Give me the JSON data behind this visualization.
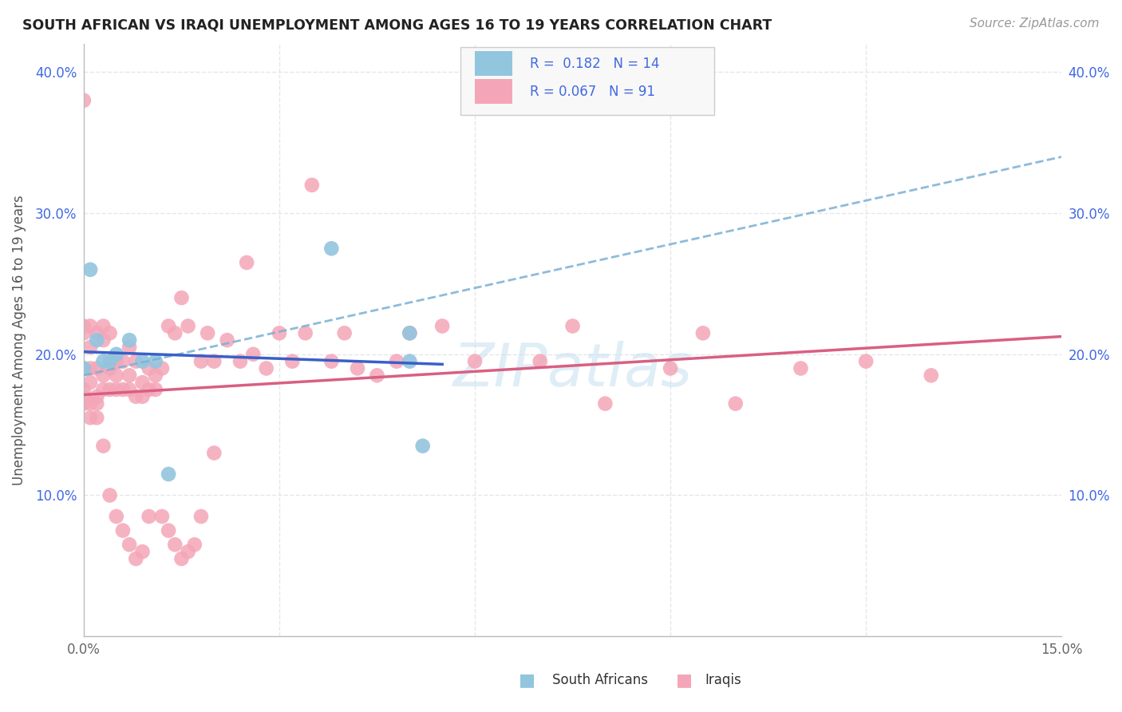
{
  "title": "SOUTH AFRICAN VS IRAQI UNEMPLOYMENT AMONG AGES 16 TO 19 YEARS CORRELATION CHART",
  "source": "Source: ZipAtlas.com",
  "ylabel": "Unemployment Among Ages 16 to 19 years",
  "xlim": [
    0.0,
    0.15
  ],
  "ylim": [
    0.0,
    0.42
  ],
  "sa_color": "#92c5de",
  "iraq_color": "#f4a6b8",
  "sa_R": 0.182,
  "sa_N": 14,
  "iraq_R": 0.067,
  "iraq_N": 91,
  "sa_line_color": "#3a5fc8",
  "iraq_line_color": "#d95f82",
  "dashed_line_color": "#7ab0d4",
  "background_color": "#ffffff",
  "grid_color": "#e0e0e0",
  "axis_label_color": "#4169e1",
  "watermark": "ZIPatlas",
  "legend_labels": [
    "South Africans",
    "Iraqis"
  ],
  "sa_x": [
    0.0,
    0.001,
    0.002,
    0.003,
    0.004,
    0.005,
    0.007,
    0.009,
    0.011,
    0.013,
    0.038,
    0.05,
    0.05,
    0.052
  ],
  "sa_y": [
    0.19,
    0.26,
    0.21,
    0.195,
    0.195,
    0.2,
    0.21,
    0.195,
    0.195,
    0.115,
    0.275,
    0.215,
    0.195,
    0.135
  ],
  "iraq_x": [
    0.0,
    0.0,
    0.0,
    0.0,
    0.0,
    0.0,
    0.001,
    0.001,
    0.001,
    0.001,
    0.001,
    0.002,
    0.002,
    0.002,
    0.002,
    0.003,
    0.003,
    0.003,
    0.003,
    0.004,
    0.004,
    0.004,
    0.005,
    0.005,
    0.005,
    0.006,
    0.006,
    0.007,
    0.007,
    0.007,
    0.008,
    0.008,
    0.009,
    0.009,
    0.01,
    0.01,
    0.011,
    0.011,
    0.012,
    0.013,
    0.014,
    0.015,
    0.016,
    0.018,
    0.019,
    0.02,
    0.022,
    0.024,
    0.025,
    0.026,
    0.028,
    0.03,
    0.032,
    0.034,
    0.035,
    0.038,
    0.04,
    0.042,
    0.045,
    0.048,
    0.05,
    0.055,
    0.06,
    0.07,
    0.075,
    0.08,
    0.09,
    0.095,
    0.1,
    0.11,
    0.12,
    0.13,
    0.0,
    0.001,
    0.002,
    0.003,
    0.004,
    0.005,
    0.006,
    0.007,
    0.008,
    0.009,
    0.01,
    0.012,
    0.013,
    0.014,
    0.015,
    0.016,
    0.017,
    0.018,
    0.02
  ],
  "iraq_y": [
    0.19,
    0.215,
    0.22,
    0.17,
    0.175,
    0.38,
    0.18,
    0.19,
    0.205,
    0.22,
    0.165,
    0.17,
    0.19,
    0.215,
    0.165,
    0.185,
    0.21,
    0.175,
    0.22,
    0.19,
    0.175,
    0.215,
    0.185,
    0.195,
    0.175,
    0.195,
    0.175,
    0.205,
    0.185,
    0.175,
    0.195,
    0.17,
    0.18,
    0.17,
    0.19,
    0.175,
    0.185,
    0.175,
    0.19,
    0.22,
    0.215,
    0.24,
    0.22,
    0.195,
    0.215,
    0.195,
    0.21,
    0.195,
    0.265,
    0.2,
    0.19,
    0.215,
    0.195,
    0.215,
    0.32,
    0.195,
    0.215,
    0.19,
    0.185,
    0.195,
    0.215,
    0.22,
    0.195,
    0.195,
    0.22,
    0.165,
    0.19,
    0.215,
    0.165,
    0.19,
    0.195,
    0.185,
    0.165,
    0.155,
    0.155,
    0.135,
    0.1,
    0.085,
    0.075,
    0.065,
    0.055,
    0.06,
    0.085,
    0.085,
    0.075,
    0.065,
    0.055,
    0.06,
    0.065,
    0.085,
    0.13
  ]
}
